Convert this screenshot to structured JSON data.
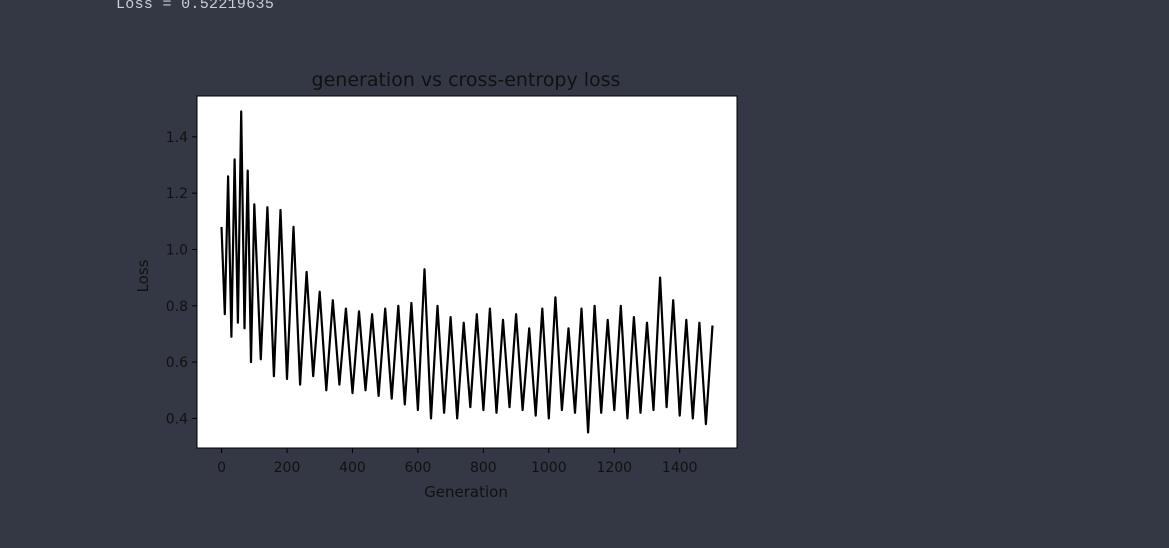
{
  "output": {
    "loss_line": "Loss = 0.52219635"
  },
  "colors": {
    "background": "#333844",
    "plot_bg": "#ffffff",
    "line": "#000000"
  },
  "chart_data": {
    "type": "line",
    "title": "generation vs cross-entropy loss",
    "xlabel": "Generation",
    "ylabel": "Loss",
    "xlim": [
      -75,
      1575
    ],
    "ylim": [
      0.295,
      1.545
    ],
    "xticks": [
      0,
      200,
      400,
      600,
      800,
      1000,
      1200,
      1400
    ],
    "yticks": [
      0.4,
      0.6,
      0.8,
      1.0,
      1.2,
      1.4
    ],
    "xtick_labels": [
      "0",
      "200",
      "400",
      "600",
      "800",
      "1000",
      "1200",
      "1400"
    ],
    "ytick_labels": [
      "0.4",
      "0.6",
      "0.8",
      "1.0",
      "1.2",
      "1.4"
    ],
    "grid": false,
    "series": [
      {
        "name": "",
        "x": [
          0,
          10,
          20,
          30,
          40,
          50,
          60,
          70,
          80,
          90,
          100,
          120,
          140,
          160,
          180,
          200,
          220,
          240,
          260,
          280,
          300,
          320,
          340,
          360,
          380,
          400,
          420,
          440,
          460,
          480,
          500,
          520,
          540,
          560,
          580,
          600,
          620,
          640,
          660,
          680,
          700,
          720,
          740,
          760,
          780,
          800,
          820,
          840,
          860,
          880,
          900,
          920,
          940,
          960,
          980,
          1000,
          1020,
          1040,
          1060,
          1080,
          1100,
          1120,
          1140,
          1160,
          1180,
          1200,
          1220,
          1240,
          1260,
          1280,
          1300,
          1320,
          1340,
          1360,
          1380,
          1400,
          1420,
          1440,
          1460,
          1480,
          1500
        ],
        "y": [
          1.08,
          0.77,
          1.26,
          0.69,
          1.32,
          0.74,
          1.49,
          0.72,
          1.28,
          0.6,
          1.16,
          0.61,
          1.15,
          0.55,
          1.14,
          0.54,
          1.08,
          0.52,
          0.92,
          0.55,
          0.85,
          0.5,
          0.82,
          0.52,
          0.79,
          0.49,
          0.78,
          0.5,
          0.77,
          0.48,
          0.79,
          0.47,
          0.8,
          0.45,
          0.81,
          0.43,
          0.93,
          0.4,
          0.8,
          0.42,
          0.76,
          0.4,
          0.74,
          0.44,
          0.77,
          0.43,
          0.79,
          0.42,
          0.75,
          0.44,
          0.77,
          0.43,
          0.72,
          0.41,
          0.79,
          0.4,
          0.83,
          0.43,
          0.72,
          0.42,
          0.79,
          0.35,
          0.8,
          0.42,
          0.75,
          0.43,
          0.8,
          0.4,
          0.76,
          0.42,
          0.74,
          0.43,
          0.9,
          0.44,
          0.82,
          0.41,
          0.75,
          0.4,
          0.74,
          0.38,
          0.73
        ]
      }
    ]
  }
}
